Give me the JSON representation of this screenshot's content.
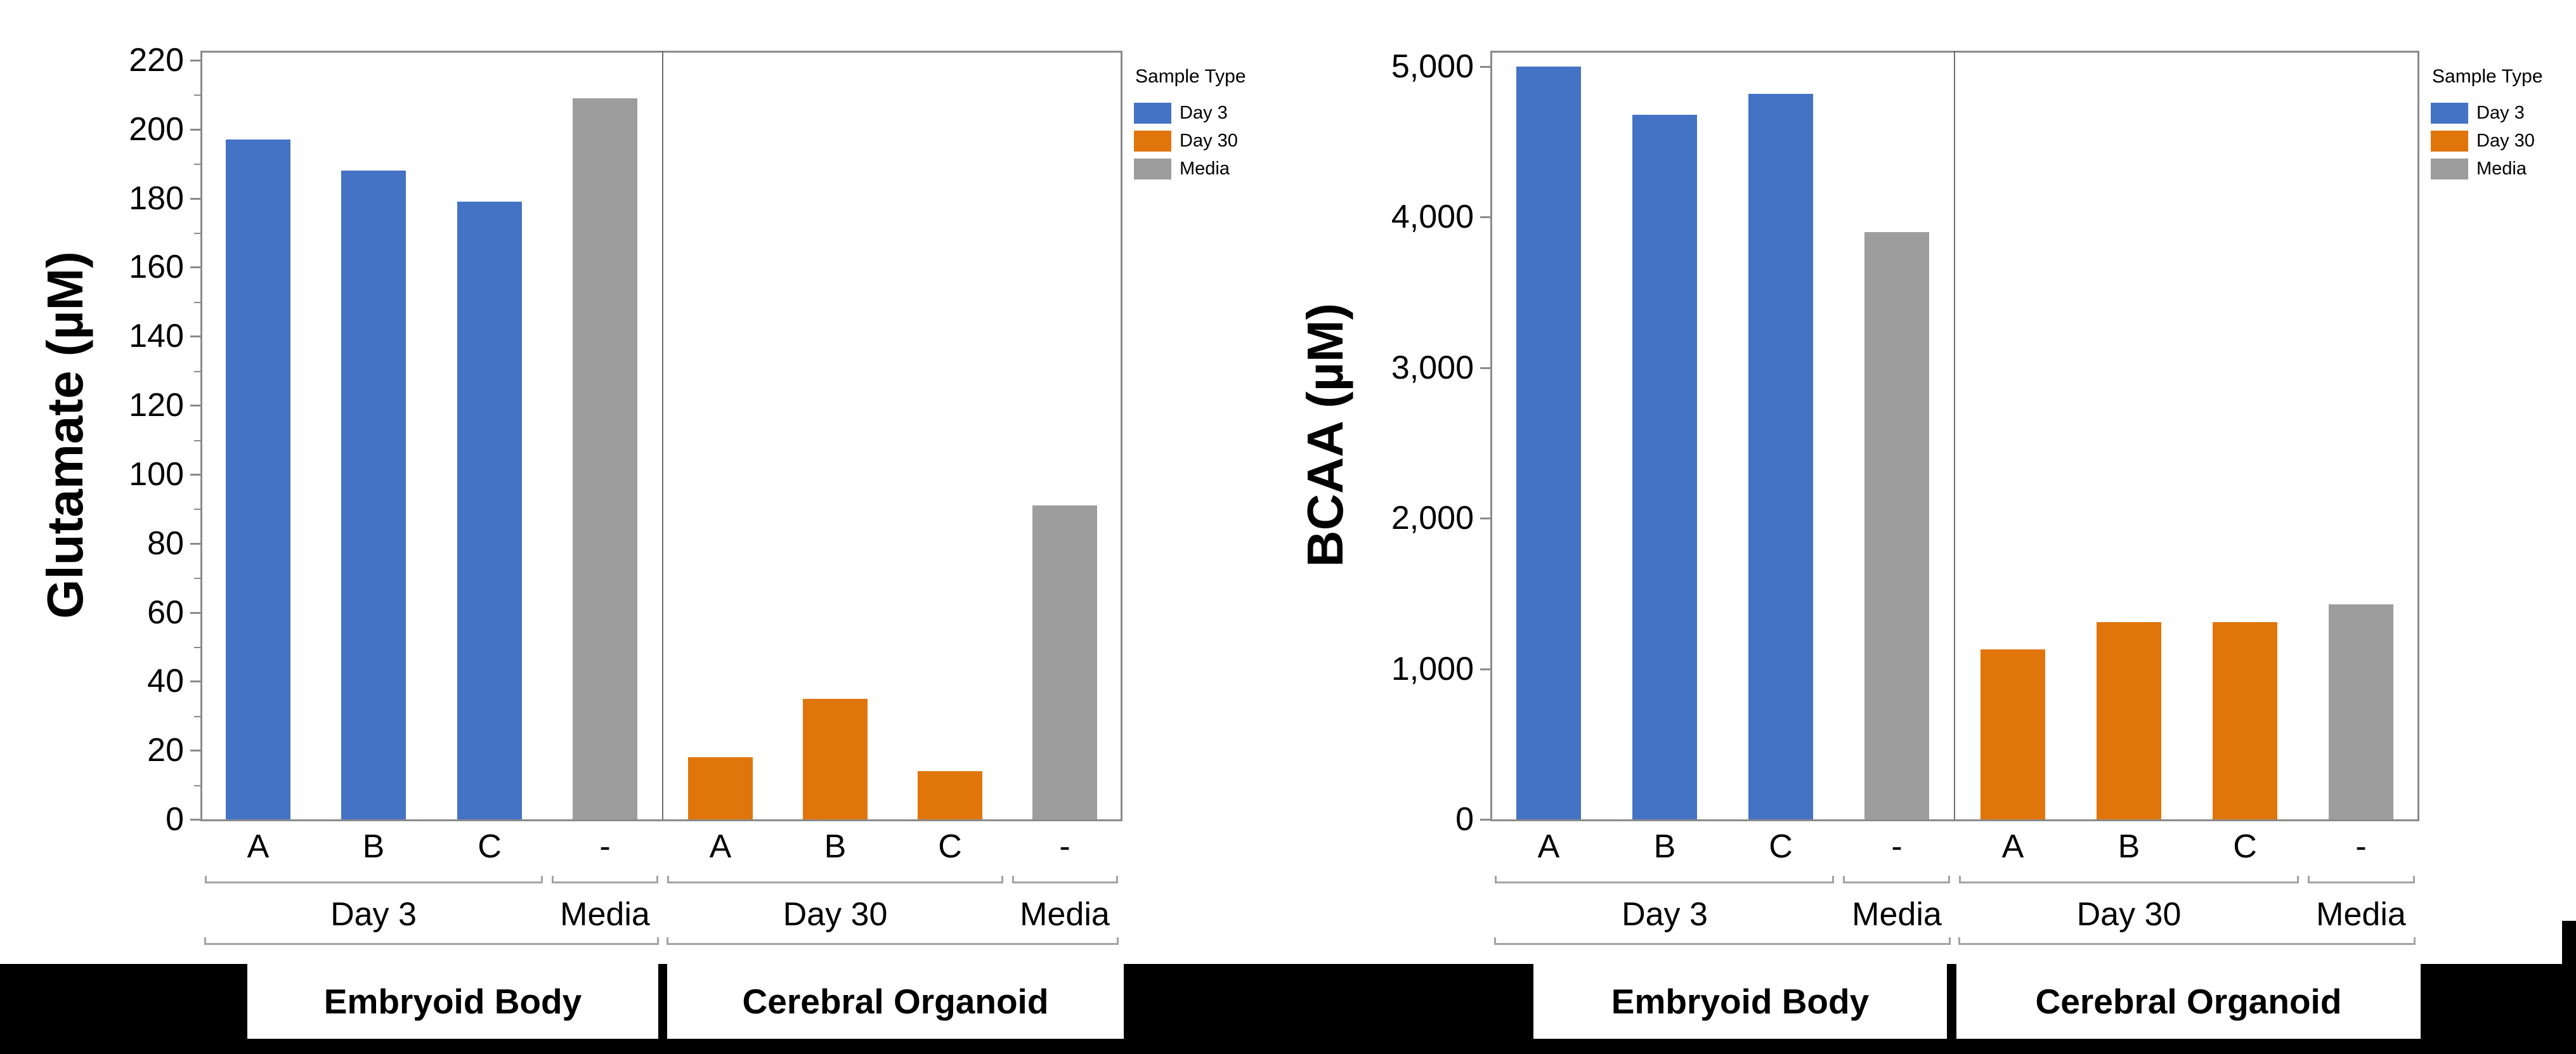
{
  "colors": {
    "day3": "#4472C4",
    "day30": "#E0750C",
    "media": "#9D9D9D",
    "frame": "#8a8a8a",
    "bracket": "#a3a3a3",
    "strip": "#000000"
  },
  "legend": {
    "title": "Sample Type",
    "entries": [
      {
        "label": "Day 3",
        "color_key": "day3"
      },
      {
        "label": "Day 30",
        "color_key": "day30"
      },
      {
        "label": "Media",
        "color_key": "media"
      }
    ]
  },
  "footer": {
    "panel_labels": [
      "Embryoid Body",
      "Cerebral Organoid"
    ]
  },
  "chart_data": [
    {
      "type": "bar",
      "title": "",
      "ylabel": "Glutamate (µM)",
      "xlabel": "",
      "ylim": [
        0,
        220
      ],
      "ytick_step": 20,
      "minor_tick_step": 10,
      "ytick_labels": [
        "0",
        "20",
        "40",
        "60",
        "80",
        "100",
        "120",
        "140",
        "160",
        "180",
        "200",
        "220"
      ],
      "grid": false,
      "legend_position": "right",
      "categories": [
        "A",
        "B",
        "C",
        "-",
        "A",
        "B",
        "C",
        "-"
      ],
      "bars": [
        {
          "cat": "A",
          "series": "Day 3",
          "color_key": "day3",
          "value": 197
        },
        {
          "cat": "B",
          "series": "Day 3",
          "color_key": "day3",
          "value": 188
        },
        {
          "cat": "C",
          "series": "Day 3",
          "color_key": "day3",
          "value": 179
        },
        {
          "cat": "-",
          "series": "Media",
          "color_key": "media",
          "value": 209
        },
        {
          "cat": "A",
          "series": "Day 30",
          "color_key": "day30",
          "value": 18
        },
        {
          "cat": "B",
          "series": "Day 30",
          "color_key": "day30",
          "value": 35
        },
        {
          "cat": "C",
          "series": "Day 30",
          "color_key": "day30",
          "value": 14
        },
        {
          "cat": "-",
          "series": "Media",
          "color_key": "media",
          "value": 91
        }
      ],
      "group_brackets": [
        {
          "label": "Day 3",
          "from": 0,
          "to": 2
        },
        {
          "label": "Media",
          "from": 3,
          "to": 3
        },
        {
          "label": "Day 30",
          "from": 4,
          "to": 6
        },
        {
          "label": "Media",
          "from": 7,
          "to": 7
        }
      ],
      "panel_brackets": [
        {
          "label": "Embryoid Body",
          "from": 0,
          "to": 3
        },
        {
          "label": "Cerebral Organoid",
          "from": 4,
          "to": 7
        }
      ]
    },
    {
      "type": "bar",
      "title": "",
      "ylabel": "BCAA (µM)",
      "xlabel": "",
      "ylim": [
        0,
        5000
      ],
      "ytick_step": 1000,
      "minor_tick_step": 0,
      "ytick_labels": [
        "0",
        "1,000",
        "2,000",
        "3,000",
        "4,000",
        "5,000"
      ],
      "grid": false,
      "legend_position": "right",
      "categories": [
        "A",
        "B",
        "C",
        "-",
        "A",
        "B",
        "C",
        "-"
      ],
      "bars": [
        {
          "cat": "A",
          "series": "Day 3",
          "color_key": "day3",
          "value": 5000
        },
        {
          "cat": "B",
          "series": "Day 3",
          "color_key": "day3",
          "value": 4680
        },
        {
          "cat": "C",
          "series": "Day 3",
          "color_key": "day3",
          "value": 4820
        },
        {
          "cat": "-",
          "series": "Media",
          "color_key": "media",
          "value": 3900
        },
        {
          "cat": "A",
          "series": "Day 30",
          "color_key": "day30",
          "value": 1130
        },
        {
          "cat": "B",
          "series": "Day 30",
          "color_key": "day30",
          "value": 1310
        },
        {
          "cat": "C",
          "series": "Day 30",
          "color_key": "day30",
          "value": 1310
        },
        {
          "cat": "-",
          "series": "Media",
          "color_key": "media",
          "value": 1430
        }
      ],
      "group_brackets": [
        {
          "label": "Day 3",
          "from": 0,
          "to": 2
        },
        {
          "label": "Media",
          "from": 3,
          "to": 3
        },
        {
          "label": "Day 30",
          "from": 4,
          "to": 6
        },
        {
          "label": "Media",
          "from": 7,
          "to": 7
        }
      ],
      "panel_brackets": [
        {
          "label": "Embryoid Body",
          "from": 0,
          "to": 3
        },
        {
          "label": "Cerebral Organoid",
          "from": 4,
          "to": 7
        }
      ]
    }
  ]
}
